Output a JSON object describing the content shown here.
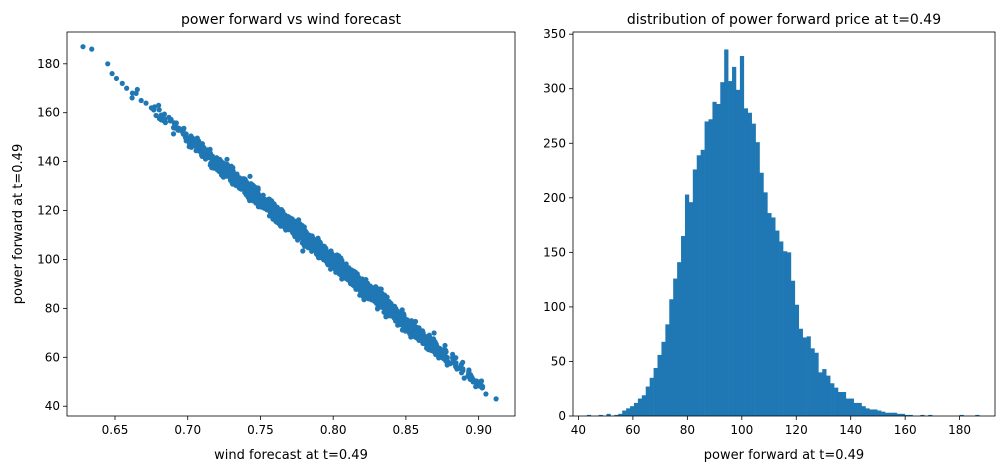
{
  "chart_data": [
    {
      "type": "scatter",
      "title": "power forward vs wind forecast",
      "xlabel": "wind forecast at t=0.49",
      "ylabel": "power forward at t=0.49",
      "xlim": [
        0.617,
        0.925
      ],
      "ylim": [
        36,
        193
      ],
      "xticks": [
        0.65,
        0.7,
        0.75,
        0.8,
        0.85,
        0.9
      ],
      "xtick_labels": [
        "0.65",
        "0.70",
        "0.75",
        "0.80",
        "0.85",
        "0.90"
      ],
      "yticks": [
        40,
        60,
        80,
        100,
        120,
        140,
        160,
        180
      ],
      "ytick_labels": [
        "40",
        "60",
        "80",
        "100",
        "120",
        "140",
        "160",
        "180"
      ],
      "color": "#1f77b4",
      "trend": {
        "x_start": 0.628,
        "x_end": 0.912,
        "y_at_start": 186,
        "y_at_end": 43
      },
      "x_distribution": {
        "mean": 0.795,
        "sd": 0.045
      },
      "outliers": [
        {
          "x": 0.628,
          "y": 187
        },
        {
          "x": 0.634,
          "y": 186
        },
        {
          "x": 0.645,
          "y": 180
        },
        {
          "x": 0.648,
          "y": 176
        },
        {
          "x": 0.651,
          "y": 174
        },
        {
          "x": 0.655,
          "y": 172
        },
        {
          "x": 0.658,
          "y": 170
        },
        {
          "x": 0.662,
          "y": 168
        },
        {
          "x": 0.668,
          "y": 165
        },
        {
          "x": 0.675,
          "y": 162
        },
        {
          "x": 0.68,
          "y": 163
        },
        {
          "x": 0.905,
          "y": 45
        },
        {
          "x": 0.912,
          "y": 43
        }
      ]
    },
    {
      "type": "bar",
      "title": "distribution of power forward price at t=0.49",
      "xlabel": "power forward at t=0.49",
      "ylabel": "",
      "xlim": [
        38,
        193
      ],
      "ylim": [
        0,
        352
      ],
      "xticks": [
        40,
        60,
        80,
        100,
        120,
        140,
        160,
        180
      ],
      "xtick_labels": [
        "40",
        "60",
        "80",
        "100",
        "120",
        "140",
        "160",
        "180"
      ],
      "yticks": [
        0,
        50,
        100,
        150,
        200,
        250,
        300,
        350
      ],
      "ytick_labels": [
        "0",
        "50",
        "100",
        "150",
        "200",
        "250",
        "300",
        "350"
      ],
      "color": "#1f77b4",
      "bins": {
        "start": 43.1,
        "width": 1.441
      },
      "values": [
        1,
        0,
        0,
        1,
        0,
        2,
        0,
        1,
        2,
        5,
        7,
        9,
        12,
        16,
        19,
        27,
        35,
        44,
        56,
        68,
        84,
        107,
        126,
        141,
        165,
        203,
        196,
        226,
        239,
        244,
        270,
        272,
        288,
        286,
        306,
        336,
        307,
        320,
        299,
        330,
        282,
        278,
        268,
        251,
        223,
        205,
        186,
        182,
        170,
        160,
        151,
        150,
        124,
        102,
        80,
        72,
        73,
        62,
        58,
        40,
        43,
        37,
        30,
        26,
        22,
        22,
        16,
        16,
        12,
        12,
        9,
        7,
        6,
        6,
        5,
        4,
        3,
        3,
        3,
        2,
        2,
        1,
        1,
        0,
        0,
        1,
        0,
        1,
        0,
        0,
        0,
        0,
        0,
        0,
        0,
        1,
        0,
        0,
        0,
        1
      ]
    }
  ]
}
